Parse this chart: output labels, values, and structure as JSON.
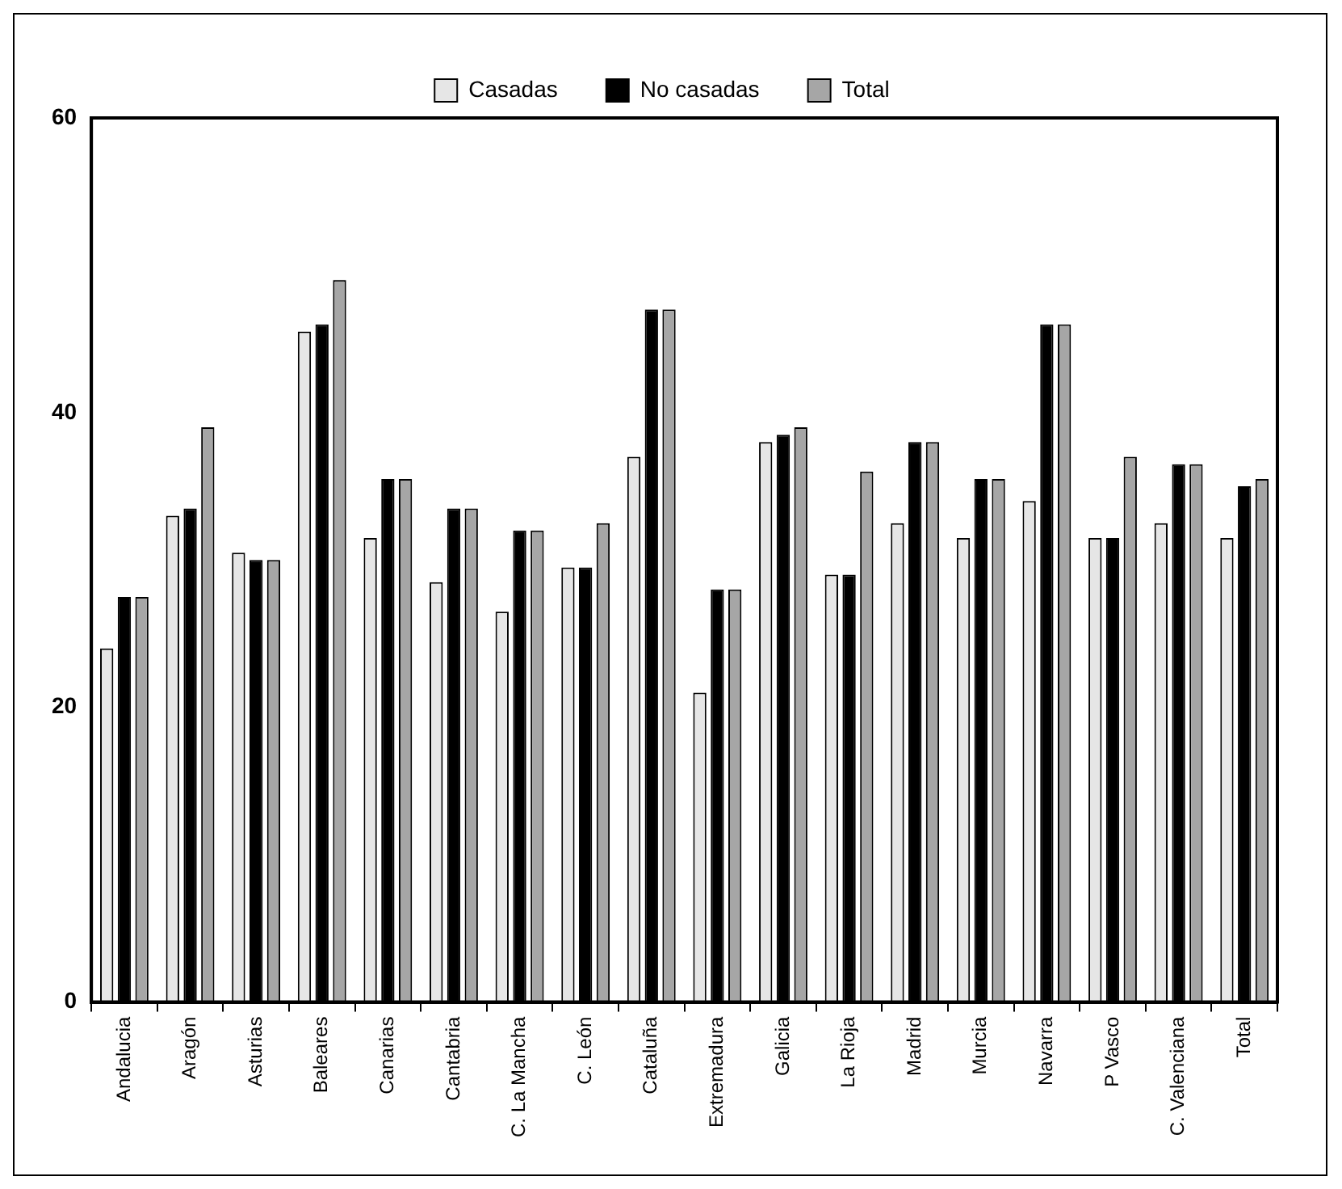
{
  "chart_data": {
    "type": "bar",
    "categories": [
      "Andalucia",
      "Aragón",
      "Asturias",
      "Baleares",
      "Canarias",
      "Cantabria",
      "C. La Mancha",
      "C. León",
      "Cataluña",
      "Extremadura",
      "Galicia",
      "La Rioja",
      "Madrid",
      "Murcia",
      "Navarra",
      "P Vasco",
      "C. Valenciana",
      "Total"
    ],
    "series": [
      {
        "name": "Casadas",
        "color": "#e6e6e6",
        "values": [
          24,
          33,
          30.5,
          45.5,
          31.5,
          28.5,
          26.5,
          29.5,
          37,
          21,
          38,
          29,
          32.5,
          31.5,
          34,
          31.5,
          32.5,
          31.5
        ]
      },
      {
        "name": "No casadas",
        "color": "#000000",
        "values": [
          27.5,
          33.5,
          30,
          46,
          35.5,
          33.5,
          32,
          29.5,
          47,
          28,
          38.5,
          29,
          38,
          35.5,
          46,
          31.5,
          36.5,
          35
        ]
      },
      {
        "name": "Total",
        "color": "#a6a6a6",
        "values": [
          27.5,
          39,
          30,
          49,
          35.5,
          33.5,
          32,
          32.5,
          47,
          28,
          39,
          36,
          38,
          35.5,
          46,
          37,
          36.5,
          35.5
        ]
      }
    ],
    "ylim": [
      0,
      60
    ],
    "yticks": [
      0,
      20,
      40,
      60
    ],
    "grid": false,
    "legend": "top"
  }
}
